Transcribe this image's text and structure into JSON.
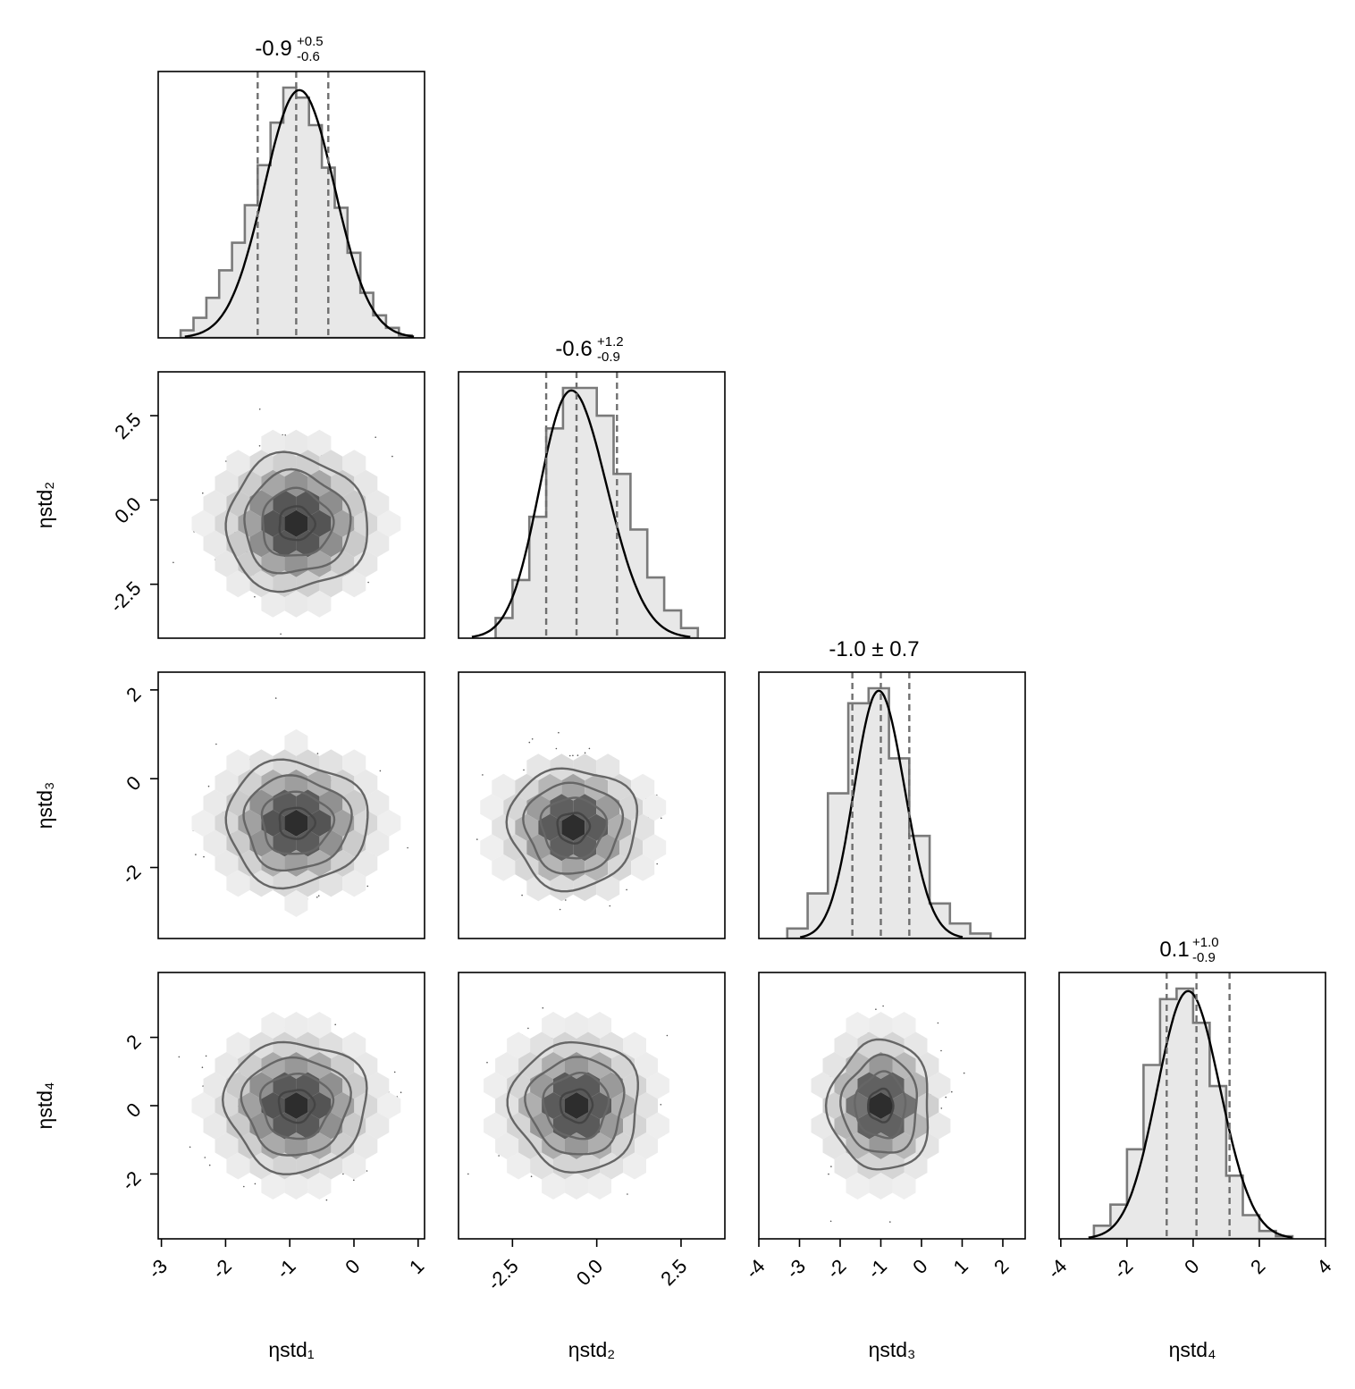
{
  "chart_data": {
    "type": "corner",
    "parameters": [
      "ηstd₁",
      "ηstd₂",
      "ηstd₃",
      "ηstd₄"
    ],
    "ranges": [
      [
        -3.05,
        1.1
      ],
      [
        -4.1,
        3.8
      ],
      [
        -4.0,
        2.55
      ],
      [
        -4.05,
        4.0
      ]
    ],
    "ticks": [
      {
        "values": [
          -3,
          -2,
          -1,
          0,
          1
        ],
        "labels": [
          "-3",
          "-2",
          "-1",
          "0",
          "1"
        ]
      },
      {
        "values": [
          -2.5,
          0.0,
          2.5
        ],
        "labels": [
          "-2.5",
          "0.0",
          "2.5"
        ]
      },
      {
        "values": [
          -4,
          -3,
          -2,
          -1,
          0,
          1,
          2
        ],
        "labels": [
          "-4",
          "-3",
          "-2",
          "-1",
          "0",
          "1",
          "2"
        ]
      },
      {
        "values": [
          -4,
          -2,
          0,
          2,
          4
        ],
        "labels": [
          "-4",
          "-2",
          "0",
          "2",
          "4"
        ]
      }
    ],
    "y_ticks": [
      null,
      {
        "values": [
          -2.5,
          0.0,
          2.5
        ],
        "labels": [
          "-2.5",
          "0.0",
          "2.5"
        ]
      },
      {
        "values": [
          -2,
          0,
          2
        ],
        "labels": [
          "-2",
          "0",
          "2"
        ]
      },
      {
        "values": [
          -2,
          0,
          2
        ],
        "labels": [
          "-2",
          "0",
          "2"
        ]
      }
    ],
    "y_ranges": [
      null,
      [
        -4.1,
        3.8
      ],
      [
        -3.6,
        2.4
      ],
      [
        -3.9,
        3.9
      ]
    ],
    "summaries": [
      {
        "median": -0.9,
        "plus": 0.5,
        "minus": 0.6,
        "title_main": "-0.9",
        "title_sup": "+0.5",
        "title_sub": "-0.6"
      },
      {
        "median": -0.6,
        "plus": 1.2,
        "minus": 0.9,
        "title_main": "-0.6",
        "title_sup": "+1.2",
        "title_sub": "-0.9"
      },
      {
        "median": -1.0,
        "plus": 0.7,
        "minus": 0.7,
        "title_main": "-1.0 ± 0.7",
        "title_sup": "",
        "title_sub": ""
      },
      {
        "median": 0.1,
        "plus": 1.0,
        "minus": 0.9,
        "title_main": "0.1",
        "title_sup": "+1.0",
        "title_sub": "-0.9"
      }
    ],
    "marginals": [
      {
        "bin_edges": [
          -2.7,
          -2.5,
          -2.3,
          -2.1,
          -1.9,
          -1.7,
          -1.5,
          -1.3,
          -1.1,
          -0.9,
          -0.7,
          -0.5,
          -0.3,
          -0.1,
          0.1,
          0.3,
          0.5,
          0.7,
          0.9
        ],
        "counts": [
          0.03,
          0.08,
          0.16,
          0.27,
          0.38,
          0.53,
          0.69,
          0.86,
          1.0,
          0.96,
          0.85,
          0.68,
          0.52,
          0.34,
          0.18,
          0.09,
          0.04,
          0.01
        ]
      },
      {
        "bin_edges": [
          -3.0,
          -2.5,
          -2.0,
          -1.5,
          -1.0,
          -0.5,
          0.0,
          0.5,
          1.0,
          1.5,
          2.0,
          2.5,
          3.0
        ],
        "counts": [
          0.08,
          0.23,
          0.48,
          0.83,
          0.99,
          0.99,
          0.88,
          0.65,
          0.43,
          0.24,
          0.11,
          0.04
        ]
      },
      {
        "bin_edges": [
          -3.3,
          -2.8,
          -2.3,
          -1.8,
          -1.3,
          -0.8,
          -0.3,
          0.2,
          0.7,
          1.2,
          1.7
        ],
        "counts": [
          0.04,
          0.18,
          0.58,
          0.94,
          1.0,
          0.72,
          0.41,
          0.14,
          0.06,
          0.02
        ]
      },
      {
        "bin_edges": [
          -3.0,
          -2.5,
          -2.0,
          -1.5,
          -1.0,
          -0.5,
          0.0,
          0.5,
          1.0,
          1.5,
          2.0,
          2.5,
          3.0
        ],
        "counts": [
          0.05,
          0.13,
          0.34,
          0.66,
          0.91,
          0.95,
          0.82,
          0.58,
          0.24,
          0.09,
          0.03,
          0.01
        ]
      }
    ],
    "kde": [
      {
        "mean": -0.85,
        "sd": 0.55,
        "skew": 0.0
      },
      {
        "mean": -0.75,
        "sd": 1.0,
        "skew": 0.35
      },
      {
        "mean": -1.05,
        "sd": 0.62,
        "skew": 0.15
      },
      {
        "mean": -0.15,
        "sd": 0.95,
        "skew": 0.1
      }
    ],
    "joints": [
      {
        "row": 1,
        "col": 0,
        "center": [
          -0.9,
          -0.7
        ],
        "spread": [
          0.55,
          1.0
        ]
      },
      {
        "row": 2,
        "col": 0,
        "center": [
          -0.9,
          -1.0
        ],
        "spread": [
          0.55,
          0.7
        ]
      },
      {
        "row": 2,
        "col": 1,
        "center": [
          -0.7,
          -1.1
        ],
        "spread": [
          0.95,
          0.68
        ]
      },
      {
        "row": 3,
        "col": 0,
        "center": [
          -0.9,
          0.0
        ],
        "spread": [
          0.55,
          0.95
        ]
      },
      {
        "row": 3,
        "col": 1,
        "center": [
          -0.6,
          0.0
        ],
        "spread": [
          0.95,
          0.95
        ]
      },
      {
        "row": 3,
        "col": 2,
        "center": [
          -1.0,
          0.0
        ],
        "spread": [
          0.62,
          0.95
        ]
      }
    ],
    "colors": {
      "fill": "#e8e8e8",
      "hist_step": "#7a7a7a",
      "kde": "#000000",
      "quantile": "#6f6f6f",
      "contour": "#666666",
      "point": "#555555"
    }
  }
}
